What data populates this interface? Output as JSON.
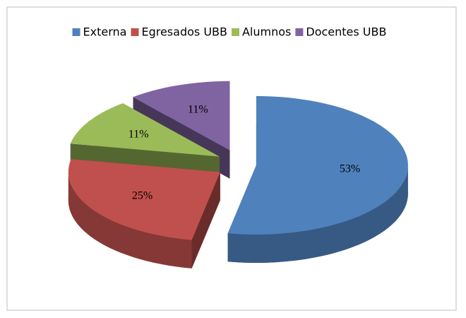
{
  "chart_data": {
    "type": "pie3d",
    "categories": [
      "Externa",
      "Egresados UBB",
      "Alumnos",
      "Docentes UBB"
    ],
    "values": [
      53,
      25,
      11,
      11
    ],
    "value_labels": [
      "53%",
      "25%",
      "11%",
      "11%"
    ],
    "colors": [
      "#4f81bd",
      "#c0504d",
      "#9bbb59",
      "#8064a2"
    ],
    "legend": "top"
  }
}
